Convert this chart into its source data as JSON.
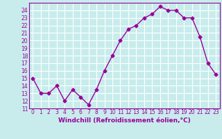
{
  "x": [
    0,
    1,
    2,
    3,
    4,
    5,
    6,
    7,
    8,
    9,
    10,
    11,
    12,
    13,
    14,
    15,
    16,
    17,
    18,
    19,
    20,
    21,
    22,
    23
  ],
  "y": [
    15,
    13,
    13,
    14,
    12,
    13.5,
    12.5,
    11.5,
    13.5,
    16,
    18,
    20,
    21.5,
    22,
    23,
    23.5,
    24.5,
    24,
    24,
    23,
    23,
    20.5,
    17,
    15.5
  ],
  "line_color": "#990099",
  "marker": "D",
  "marker_size": 2.5,
  "line_width": 1,
  "background_color": "#c8ecec",
  "grid_color": "#ffffff",
  "xlabel": "Windchill (Refroidissement éolien,°C)",
  "xlabel_color": "#990099",
  "tick_color": "#990099",
  "ylim": [
    11,
    25
  ],
  "xlim": [
    -0.5,
    23.5
  ],
  "yticks": [
    11,
    12,
    13,
    14,
    15,
    16,
    17,
    18,
    19,
    20,
    21,
    22,
    23,
    24
  ],
  "xticks": [
    0,
    1,
    2,
    3,
    4,
    5,
    6,
    7,
    8,
    9,
    10,
    11,
    12,
    13,
    14,
    15,
    16,
    17,
    18,
    19,
    20,
    21,
    22,
    23
  ],
  "xtick_labels": [
    "0",
    "1",
    "2",
    "3",
    "4",
    "5",
    "6",
    "7",
    "8",
    "9",
    "10",
    "11",
    "12",
    "13",
    "14",
    "15",
    "16",
    "17",
    "18",
    "19",
    "20",
    "21",
    "22",
    "23"
  ],
  "ytick_labels": [
    "11",
    "12",
    "13",
    "14",
    "15",
    "16",
    "17",
    "18",
    "19",
    "20",
    "21",
    "22",
    "23",
    "24"
  ],
  "spine_color": "#990099",
  "tick_fontsize": 5.5,
  "xlabel_fontsize": 6.5
}
